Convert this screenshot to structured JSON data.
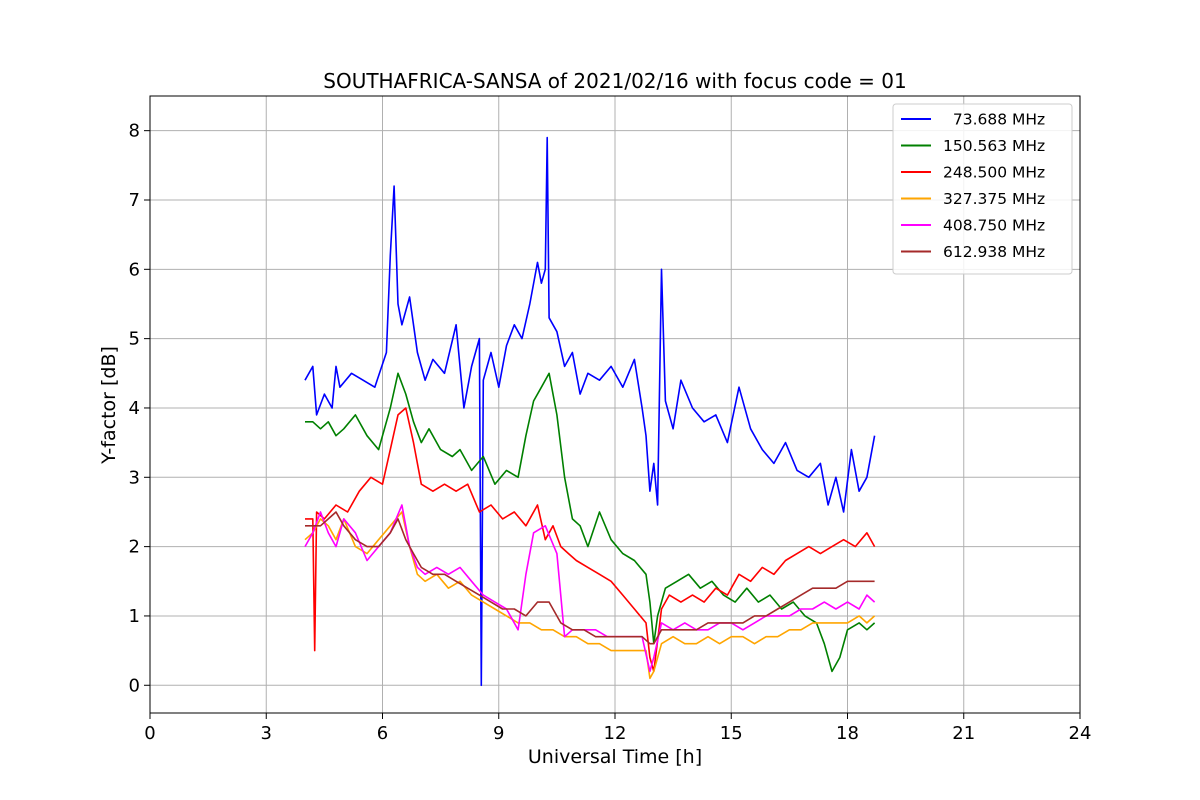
{
  "chart_data": {
    "type": "line",
    "title": "SOUTHAFRICA-SANSA of 2021/02/16 with focus code = 01",
    "xlabel": "Universal Time [h]",
    "ylabel": "Y-factor [dB]",
    "xlim": [
      0,
      24
    ],
    "ylim": [
      -0.4,
      8.5
    ],
    "xticks": [
      "0",
      "3",
      "6",
      "9",
      "12",
      "15",
      "18",
      "21",
      "24"
    ],
    "yticks": [
      "0",
      "1",
      "2",
      "3",
      "4",
      "5",
      "6",
      "7",
      "8"
    ],
    "grid": true,
    "legend_position": "top-right",
    "series": [
      {
        "name": "  73.688 MHz",
        "color": "#0000ff",
        "x": [
          4.0,
          4.2,
          4.3,
          4.5,
          4.7,
          4.8,
          4.9,
          5.2,
          5.5,
          5.8,
          6.1,
          6.2,
          6.3,
          6.4,
          6.5,
          6.7,
          6.9,
          7.1,
          7.3,
          7.6,
          7.9,
          8.1,
          8.3,
          8.5,
          8.55,
          8.6,
          8.8,
          9.0,
          9.2,
          9.4,
          9.6,
          9.8,
          10.0,
          10.1,
          10.2,
          10.25,
          10.3,
          10.5,
          10.7,
          10.9,
          11.1,
          11.3,
          11.6,
          11.9,
          12.2,
          12.5,
          12.7,
          12.8,
          12.9,
          13.0,
          13.1,
          13.2,
          13.3,
          13.5,
          13.7,
          14.0,
          14.3,
          14.6,
          14.9,
          15.2,
          15.5,
          15.8,
          16.1,
          16.4,
          16.7,
          17.0,
          17.3,
          17.5,
          17.7,
          17.9,
          18.1,
          18.3,
          18.5,
          18.7
        ],
        "y": [
          4.4,
          4.6,
          3.9,
          4.2,
          4.0,
          4.6,
          4.3,
          4.5,
          4.4,
          4.3,
          4.8,
          6.2,
          7.2,
          5.5,
          5.2,
          5.6,
          4.8,
          4.4,
          4.7,
          4.5,
          5.2,
          4.0,
          4.6,
          5.0,
          0.0,
          4.4,
          4.8,
          4.3,
          4.9,
          5.2,
          5.0,
          5.5,
          6.1,
          5.8,
          6.0,
          7.9,
          5.3,
          5.1,
          4.6,
          4.8,
          4.2,
          4.5,
          4.4,
          4.6,
          4.3,
          4.7,
          4.0,
          3.6,
          2.8,
          3.2,
          2.6,
          6.0,
          4.1,
          3.7,
          4.4,
          4.0,
          3.8,
          3.9,
          3.5,
          4.3,
          3.7,
          3.4,
          3.2,
          3.5,
          3.1,
          3.0,
          3.2,
          2.6,
          3.0,
          2.5,
          3.4,
          2.8,
          3.0,
          3.6
        ]
      },
      {
        "name": "150.563 MHz",
        "color": "#008000",
        "x": [
          4.0,
          4.2,
          4.4,
          4.6,
          4.8,
          5.0,
          5.3,
          5.6,
          5.9,
          6.2,
          6.4,
          6.6,
          6.8,
          7.0,
          7.2,
          7.5,
          7.8,
          8.0,
          8.3,
          8.6,
          8.9,
          9.2,
          9.5,
          9.7,
          9.9,
          10.1,
          10.3,
          10.5,
          10.7,
          10.9,
          11.1,
          11.3,
          11.6,
          11.9,
          12.2,
          12.5,
          12.8,
          12.9,
          13.0,
          13.1,
          13.3,
          13.6,
          13.9,
          14.2,
          14.5,
          14.8,
          15.1,
          15.4,
          15.7,
          16.0,
          16.3,
          16.6,
          16.9,
          17.2,
          17.4,
          17.6,
          17.8,
          18.0,
          18.3,
          18.5,
          18.7
        ],
        "y": [
          3.8,
          3.8,
          3.7,
          3.8,
          3.6,
          3.7,
          3.9,
          3.6,
          3.4,
          4.0,
          4.5,
          4.2,
          3.8,
          3.5,
          3.7,
          3.4,
          3.3,
          3.4,
          3.1,
          3.3,
          2.9,
          3.1,
          3.0,
          3.6,
          4.1,
          4.3,
          4.5,
          3.9,
          3.0,
          2.4,
          2.3,
          2.0,
          2.5,
          2.1,
          1.9,
          1.8,
          1.6,
          1.2,
          0.6,
          1.0,
          1.4,
          1.5,
          1.6,
          1.4,
          1.5,
          1.3,
          1.2,
          1.4,
          1.2,
          1.3,
          1.1,
          1.2,
          1.0,
          0.9,
          0.6,
          0.2,
          0.4,
          0.8,
          0.9,
          0.8,
          0.9
        ]
      },
      {
        "name": "248.500 MHz",
        "color": "#ff0000",
        "x": [
          4.0,
          4.2,
          4.25,
          4.3,
          4.5,
          4.8,
          5.1,
          5.4,
          5.7,
          6.0,
          6.2,
          6.4,
          6.6,
          6.8,
          7.0,
          7.3,
          7.6,
          7.9,
          8.2,
          8.5,
          8.8,
          9.1,
          9.4,
          9.7,
          10.0,
          10.2,
          10.4,
          10.6,
          10.8,
          11.0,
          11.3,
          11.6,
          11.9,
          12.2,
          12.5,
          12.8,
          12.9,
          13.0,
          13.2,
          13.4,
          13.7,
          14.0,
          14.3,
          14.6,
          14.9,
          15.2,
          15.5,
          15.8,
          16.1,
          16.4,
          16.7,
          17.0,
          17.3,
          17.6,
          17.9,
          18.2,
          18.5,
          18.7
        ],
        "y": [
          2.4,
          2.4,
          0.5,
          2.5,
          2.4,
          2.6,
          2.5,
          2.8,
          3.0,
          2.9,
          3.4,
          3.9,
          4.0,
          3.5,
          2.9,
          2.8,
          2.9,
          2.8,
          2.9,
          2.5,
          2.6,
          2.4,
          2.5,
          2.3,
          2.6,
          2.1,
          2.3,
          2.0,
          1.9,
          1.8,
          1.7,
          1.6,
          1.5,
          1.3,
          1.1,
          0.9,
          0.4,
          0.2,
          1.1,
          1.3,
          1.2,
          1.3,
          1.2,
          1.4,
          1.3,
          1.6,
          1.5,
          1.7,
          1.6,
          1.8,
          1.9,
          2.0,
          1.9,
          2.0,
          2.1,
          2.0,
          2.2,
          2.0
        ]
      },
      {
        "name": "327.375 MHz",
        "color": "#ffa500",
        "x": [
          4.0,
          4.2,
          4.4,
          4.6,
          4.8,
          5.0,
          5.3,
          5.6,
          5.9,
          6.2,
          6.5,
          6.7,
          6.9,
          7.1,
          7.4,
          7.7,
          8.0,
          8.3,
          8.6,
          8.9,
          9.2,
          9.5,
          9.8,
          10.1,
          10.4,
          10.7,
          11.0,
          11.3,
          11.6,
          11.9,
          12.2,
          12.5,
          12.8,
          12.9,
          13.0,
          13.2,
          13.5,
          13.8,
          14.1,
          14.4,
          14.7,
          15.0,
          15.3,
          15.6,
          15.9,
          16.2,
          16.5,
          16.8,
          17.1,
          17.4,
          17.7,
          18.0,
          18.3,
          18.5,
          18.7
        ],
        "y": [
          2.1,
          2.2,
          2.4,
          2.3,
          2.1,
          2.4,
          2.0,
          1.9,
          2.1,
          2.3,
          2.5,
          2.0,
          1.6,
          1.5,
          1.6,
          1.4,
          1.5,
          1.3,
          1.2,
          1.1,
          1.0,
          0.9,
          0.9,
          0.8,
          0.8,
          0.7,
          0.7,
          0.6,
          0.6,
          0.5,
          0.5,
          0.5,
          0.5,
          0.1,
          0.2,
          0.6,
          0.7,
          0.6,
          0.6,
          0.7,
          0.6,
          0.7,
          0.7,
          0.6,
          0.7,
          0.7,
          0.8,
          0.8,
          0.9,
          0.9,
          0.9,
          0.9,
          1.0,
          0.9,
          1.0
        ]
      },
      {
        "name": "408.750 MHz",
        "color": "#ff00ff",
        "x": [
          4.0,
          4.2,
          4.4,
          4.6,
          4.8,
          5.0,
          5.3,
          5.6,
          5.9,
          6.2,
          6.5,
          6.7,
          6.9,
          7.1,
          7.4,
          7.7,
          8.0,
          8.3,
          8.6,
          8.9,
          9.2,
          9.5,
          9.7,
          9.9,
          10.2,
          10.5,
          10.7,
          10.9,
          11.2,
          11.5,
          11.8,
          12.1,
          12.4,
          12.7,
          12.9,
          13.0,
          13.2,
          13.5,
          13.8,
          14.1,
          14.4,
          14.7,
          15.0,
          15.3,
          15.6,
          15.9,
          16.2,
          16.5,
          16.8,
          17.1,
          17.4,
          17.7,
          18.0,
          18.3,
          18.5,
          18.7
        ],
        "y": [
          2.0,
          2.2,
          2.5,
          2.2,
          2.0,
          2.4,
          2.2,
          1.8,
          2.0,
          2.2,
          2.6,
          2.0,
          1.7,
          1.6,
          1.7,
          1.6,
          1.7,
          1.5,
          1.3,
          1.2,
          1.1,
          0.8,
          1.6,
          2.2,
          2.3,
          1.9,
          0.7,
          0.8,
          0.8,
          0.8,
          0.7,
          0.7,
          0.7,
          0.7,
          0.2,
          0.4,
          0.9,
          0.8,
          0.9,
          0.8,
          0.8,
          0.9,
          0.9,
          0.8,
          0.9,
          1.0,
          1.0,
          1.0,
          1.1,
          1.1,
          1.2,
          1.1,
          1.2,
          1.1,
          1.3,
          1.2
        ]
      },
      {
        "name": "612.938 MHz",
        "color": "#a52a2a",
        "x": [
          4.0,
          4.2,
          4.4,
          4.6,
          4.8,
          5.0,
          5.3,
          5.6,
          5.9,
          6.2,
          6.4,
          6.6,
          6.8,
          7.0,
          7.3,
          7.6,
          7.9,
          8.2,
          8.5,
          8.8,
          9.1,
          9.4,
          9.7,
          10.0,
          10.3,
          10.6,
          10.9,
          11.2,
          11.5,
          11.8,
          12.1,
          12.4,
          12.7,
          12.9,
          13.0,
          13.2,
          13.5,
          13.8,
          14.1,
          14.4,
          14.7,
          15.0,
          15.3,
          15.6,
          15.9,
          16.2,
          16.5,
          16.8,
          17.1,
          17.4,
          17.7,
          18.0,
          18.3,
          18.5,
          18.7
        ],
        "y": [
          2.3,
          2.3,
          2.3,
          2.4,
          2.5,
          2.3,
          2.1,
          2.0,
          2.0,
          2.2,
          2.4,
          2.1,
          1.9,
          1.7,
          1.6,
          1.6,
          1.5,
          1.4,
          1.3,
          1.2,
          1.1,
          1.1,
          1.0,
          1.2,
          1.2,
          0.9,
          0.8,
          0.8,
          0.7,
          0.7,
          0.7,
          0.7,
          0.7,
          0.6,
          0.6,
          0.8,
          0.8,
          0.8,
          0.8,
          0.9,
          0.9,
          0.9,
          0.9,
          1.0,
          1.0,
          1.1,
          1.2,
          1.3,
          1.4,
          1.4,
          1.4,
          1.5,
          1.5,
          1.5,
          1.5
        ]
      }
    ]
  }
}
